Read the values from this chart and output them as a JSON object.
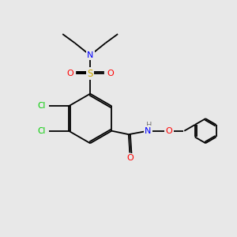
{
  "background_color": "#e8e8e8",
  "atom_colors": {
    "C": "#000000",
    "H": "#777777",
    "N": "#0000ff",
    "O": "#ff0000",
    "S": "#ccaa00",
    "Cl": "#00cc00"
  },
  "figsize": [
    3.0,
    3.0
  ],
  "dpi": 100
}
